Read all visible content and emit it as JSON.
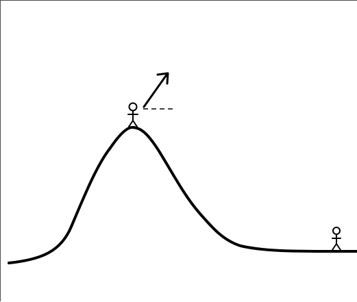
{
  "scene": {
    "figures": [
      {
        "role": "hilltop-person",
        "icon": "stick-figure-icon"
      },
      {
        "role": "flat-ground-person",
        "icon": "stick-figure-icon"
      }
    ],
    "launch_indicator": {
      "icon": "arrow-up-right-icon",
      "reference_line": "dashed-horizontal-line"
    },
    "colors": {
      "ink": "#000000",
      "background": "#ffffff",
      "frame": "#4a4a4a"
    }
  }
}
